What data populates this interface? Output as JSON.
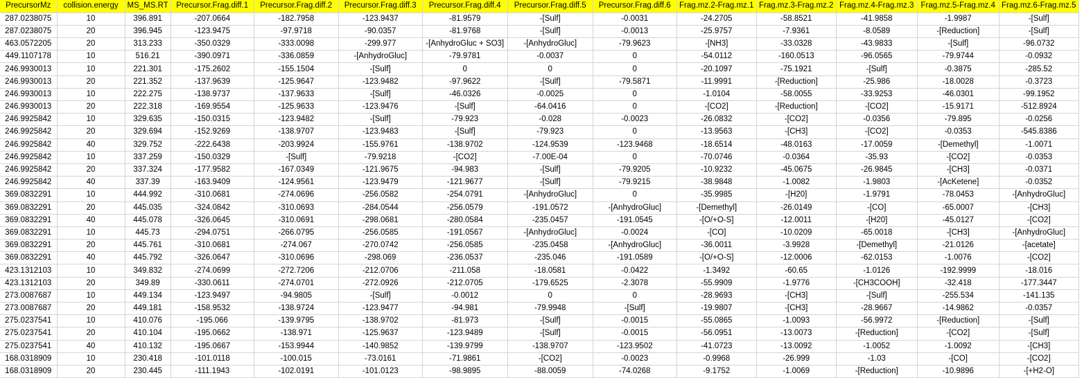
{
  "header_color": "#ffff00",
  "headers": [
    "PrecursorMz",
    "collision.energy",
    "MS_MS.RT",
    "Precursor.Frag.diff.1",
    "Precursor.Frag.diff.2",
    "Precursor.Frag.diff.3",
    "Precursor.Frag.diff.4",
    "Precursor.Frag.diff.5",
    "Precursor.Frag.diff.6",
    "Frag.mz.2-Frag.mz.1",
    "Frag.mz.3-Frag.mz.2",
    "Frag.mz.4-Frag.mz.3",
    "Frag.mz.5-Frag.mz.4",
    "Frag.mz.6-Frag.mz.5"
  ],
  "rows": [
    [
      "287.0238075",
      "10",
      "396.891",
      "-207.0664",
      "-182.7958",
      "-123.9437",
      "-81.9579",
      "-[Sulf]",
      "-0.0031",
      "-24.2705",
      "-58.8521",
      "-41.9858",
      "-1.9987",
      "-[Sulf]"
    ],
    [
      "287.0238075",
      "20",
      "396.945",
      "-123.9475",
      "-97.9718",
      "-90.0357",
      "-81.9768",
      "-[Sulf]",
      "-0.0013",
      "-25.9757",
      "-7.9361",
      "-8.0589",
      "-[Reduction]",
      "-[Sulf]"
    ],
    [
      "463.0572205",
      "20",
      "313.233",
      "-350.0329",
      "-333.0098",
      "-299.977",
      "-[AnhydroGluc + SO3]",
      "-[AnhydroGluc]",
      "-79.9623",
      "-[NH3]",
      "-33.0328",
      "-43.9833",
      "-[Sulf]",
      "-96.0732"
    ],
    [
      "449.1107178",
      "10",
      "516.21",
      "-390.0971",
      "-336.0859",
      "-[AnhydroGluc]",
      "-79.9781",
      "-0.0037",
      "0",
      "-54.0112",
      "-160.0513",
      "-96.0565",
      "-79.9744",
      "-0.0932"
    ],
    [
      "246.9930013",
      "10",
      "221.301",
      "-175.2602",
      "-155.1504",
      "-[Sulf]",
      "0",
      "0",
      "0",
      "-20.1097",
      "-75.1921",
      "-[Sulf]",
      "-0.3875",
      "-285.52"
    ],
    [
      "246.9930013",
      "20",
      "221.352",
      "-137.9639",
      "-125.9647",
      "-123.9482",
      "-97.9622",
      "-[Sulf]",
      "-79.5871",
      "-11.9991",
      "-[Reduction]",
      "-25.986",
      "-18.0028",
      "-0.3723"
    ],
    [
      "246.9930013",
      "10",
      "222.275",
      "-138.9737",
      "-137.9633",
      "-[Sulf]",
      "-46.0326",
      "-0.0025",
      "0",
      "-1.0104",
      "-58.0055",
      "-33.9253",
      "-46.0301",
      "-99.1952"
    ],
    [
      "246.9930013",
      "20",
      "222.318",
      "-169.9554",
      "-125.9633",
      "-123.9476",
      "-[Sulf]",
      "-64.0416",
      "0",
      "-[CO2]",
      "-[Reduction]",
      "-[CO2]",
      "-15.9171",
      "-512.8924"
    ],
    [
      "246.9925842",
      "10",
      "329.635",
      "-150.0315",
      "-123.9482",
      "-[Sulf]",
      "-79.923",
      "-0.028",
      "-0.0023",
      "-26.0832",
      "-[CO2]",
      "-0.0356",
      "-79.895",
      "-0.0256"
    ],
    [
      "246.9925842",
      "20",
      "329.694",
      "-152.9269",
      "-138.9707",
      "-123.9483",
      "-[Sulf]",
      "-79.923",
      "0",
      "-13.9563",
      "-[CH3]",
      "-[CO2]",
      "-0.0353",
      "-545.8386"
    ],
    [
      "246.9925842",
      "40",
      "329.752",
      "-222.6438",
      "-203.9924",
      "-155.9761",
      "-138.9702",
      "-124.9539",
      "-123.9468",
      "-18.6514",
      "-48.0163",
      "-17.0059",
      "-[Demethyl]",
      "-1.0071"
    ],
    [
      "246.9925842",
      "10",
      "337.259",
      "-150.0329",
      "-[Sulf]",
      "-79.9218",
      "-[CO2]",
      "-7.00E-04",
      "0",
      "-70.0746",
      "-0.0364",
      "-35.93",
      "-[CO2]",
      "-0.0353"
    ],
    [
      "246.9925842",
      "20",
      "337.324",
      "-177.9582",
      "-167.0349",
      "-121.9675",
      "-94.983",
      "-[Sulf]",
      "-79.9205",
      "-10.9232",
      "-45.0675",
      "-26.9845",
      "-[CH3]",
      "-0.0371"
    ],
    [
      "246.9925842",
      "40",
      "337.39",
      "-163.9409",
      "-124.9561",
      "-123.9479",
      "-121.9677",
      "-[Sulf]",
      "-79.9215",
      "-38.9848",
      "-1.0082",
      "-1.9803",
      "-[AcKetene]",
      "-0.0352"
    ],
    [
      "369.0832291",
      "10",
      "444.992",
      "-310.0681",
      "-274.0696",
      "-256.0582",
      "-254.0791",
      "-[AnhydroGluc]",
      "0",
      "-35.9985",
      "-[H20]",
      "-1.9791",
      "-78.0453",
      "-[AnhydroGluc]"
    ],
    [
      "369.0832291",
      "20",
      "445.035",
      "-324.0842",
      "-310.0693",
      "-284.0544",
      "-256.0579",
      "-191.0572",
      "-[AnhydroGluc]",
      "-[Demethyl]",
      "-26.0149",
      "-[CO]",
      "-65.0007",
      "-[CH3]"
    ],
    [
      "369.0832291",
      "40",
      "445.078",
      "-326.0645",
      "-310.0691",
      "-298.0681",
      "-280.0584",
      "-235.0457",
      "-191.0545",
      "-[O/+O-S]",
      "-12.0011",
      "-[H20]",
      "-45.0127",
      "-[CO2]"
    ],
    [
      "369.0832291",
      "10",
      "445.73",
      "-294.0751",
      "-266.0795",
      "-256.0585",
      "-191.0567",
      "-[AnhydroGluc]",
      "-0.0024",
      "-[CO]",
      "-10.0209",
      "-65.0018",
      "-[CH3]",
      "-[AnhydroGluc]"
    ],
    [
      "369.0832291",
      "20",
      "445.761",
      "-310.0681",
      "-274.067",
      "-270.0742",
      "-256.0585",
      "-235.0458",
      "-[AnhydroGluc]",
      "-36.0011",
      "-3.9928",
      "-[Demethyl]",
      "-21.0126",
      "-[acetate]"
    ],
    [
      "369.0832291",
      "40",
      "445.792",
      "-326.0647",
      "-310.0696",
      "-298.069",
      "-236.0537",
      "-235.046",
      "-191.0589",
      "-[O/+O-S]",
      "-12.0006",
      "-62.0153",
      "-1.0076",
      "-[CO2]"
    ],
    [
      "423.1312103",
      "10",
      "349.832",
      "-274.0699",
      "-272.7206",
      "-212.0706",
      "-211.058",
      "-18.0581",
      "-0.0422",
      "-1.3492",
      "-60.65",
      "-1.0126",
      "-192.9999",
      "-18.016"
    ],
    [
      "423.1312103",
      "20",
      "349.89",
      "-330.0611",
      "-274.0701",
      "-272.0926",
      "-212.0705",
      "-179.6525",
      "-2.3078",
      "-55.9909",
      "-1.9776",
      "-[CH3COOH]",
      "-32.418",
      "-177.3447"
    ],
    [
      "273.0087687",
      "10",
      "449.134",
      "-123.9497",
      "-94.9805",
      "-[Sulf]",
      "-0.0012",
      "0",
      "0",
      "-28.9693",
      "-[CH3]",
      "-[Sulf]",
      "-255.534",
      "-141.135"
    ],
    [
      "273.0087687",
      "20",
      "449.181",
      "-158.9532",
      "-138.9724",
      "-123.9477",
      "-94.981",
      "-79.9948",
      "-[Sulf]",
      "-19.9807",
      "-[CH3]",
      "-28.9667",
      "-14.9862",
      "-0.0357"
    ],
    [
      "275.0237541",
      "10",
      "410.076",
      "-195.066",
      "-139.9795",
      "-138.9702",
      "-81.973",
      "-[Sulf]",
      "-0.0015",
      "-55.0865",
      "-1.0093",
      "-56.9972",
      "-[Reduction]",
      "-[Sulf]"
    ],
    [
      "275.0237541",
      "20",
      "410.104",
      "-195.0662",
      "-138.971",
      "-125.9637",
      "-123.9489",
      "-[Sulf]",
      "-0.0015",
      "-56.0951",
      "-13.0073",
      "-[Reduction]",
      "-[CO2]",
      "-[Sulf]"
    ],
    [
      "275.0237541",
      "40",
      "410.132",
      "-195.0667",
      "-153.9944",
      "-140.9852",
      "-139.9799",
      "-138.9707",
      "-123.9502",
      "-41.0723",
      "-13.0092",
      "-1.0052",
      "-1.0092",
      "-[CH3]"
    ],
    [
      "168.0318909",
      "10",
      "230.418",
      "-101.0118",
      "-100.015",
      "-73.0161",
      "-71.9861",
      "-[CO2]",
      "-0.0023",
      "-0.9968",
      "-26.999",
      "-1.03",
      "-[CO]",
      "-[CO2]"
    ],
    [
      "168.0318909",
      "20",
      "230.445",
      "-111.1943",
      "-102.0191",
      "-101.0123",
      "-98.9895",
      "-88.0059",
      "-74.0268",
      "-9.1752",
      "-1.0069",
      "-[Reduction]",
      "-10.9896",
      "-[+H2-O]"
    ]
  ]
}
